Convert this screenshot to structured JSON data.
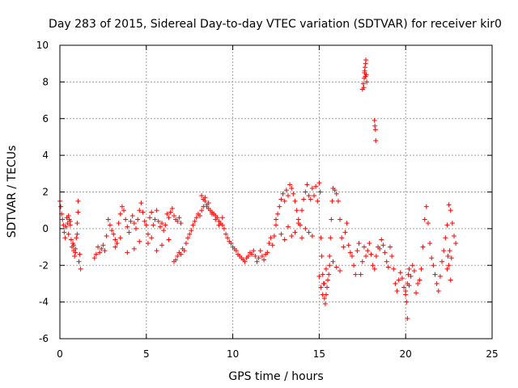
{
  "chart_data": {
    "type": "scatter",
    "title": "Day 283 of 2015, Sidereal Day-to-day VTEC variation (SDTVAR) for receiver kir0",
    "xlabel": "GPS time / hours",
    "ylabel": "SDTVAR / TECUs",
    "xlim": [
      0,
      25
    ],
    "ylim": [
      -6,
      10
    ],
    "xticks": [
      "0",
      "5",
      "10",
      "15",
      "20",
      "25"
    ],
    "yticks": [
      "-6",
      "-4",
      "-2",
      "0",
      "2",
      "4",
      "6",
      "8",
      "10"
    ],
    "grid": true,
    "marker": "+",
    "color": "#ff0000",
    "series": [
      {
        "name": "SDTVAR",
        "x": [
          0.0,
          0.05,
          0.1,
          0.15,
          0.2,
          0.25,
          0.3,
          0.35,
          0.4,
          0.45,
          0.5,
          0.55,
          0.6,
          0.65,
          0.7,
          0.75,
          0.8,
          0.85,
          0.9,
          0.95,
          1.0,
          1.05,
          1.1,
          1.15,
          1.2,
          0.5,
          0.6,
          0.8,
          0.9,
          1.0,
          1.05,
          2.0,
          2.1,
          2.2,
          2.3,
          2.4,
          2.5,
          2.6,
          2.7,
          2.8,
          2.9,
          3.0,
          3.1,
          3.2,
          3.3,
          3.4,
          3.5,
          3.6,
          3.7,
          3.8,
          3.9,
          4.0,
          4.1,
          4.2,
          4.3,
          4.4,
          4.5,
          4.6,
          4.7,
          4.8,
          4.9,
          3.2,
          3.5,
          3.9,
          4.3,
          4.6,
          5.0,
          5.1,
          5.2,
          5.3,
          5.4,
          5.5,
          5.6,
          5.7,
          5.8,
          5.9,
          6.0,
          6.1,
          6.2,
          6.3,
          6.4,
          6.5,
          6.6,
          6.7,
          6.8,
          6.9,
          7.0,
          5.1,
          5.3,
          5.6,
          5.9,
          6.3,
          6.6,
          6.7,
          6.8,
          6.9,
          7.0,
          7.1,
          7.2,
          7.3,
          7.4,
          7.5,
          7.6,
          7.7,
          7.8,
          7.9,
          8.0,
          8.1,
          8.2,
          8.3,
          8.4,
          8.5,
          8.6,
          8.7,
          8.8,
          8.9,
          9.0,
          9.1,
          9.2,
          9.3,
          9.4,
          9.5,
          9.6,
          9.7,
          9.8,
          9.9,
          10.0,
          8.2,
          8.3,
          8.4,
          8.5,
          8.6,
          8.8,
          9.0,
          9.2,
          9.4,
          10.1,
          10.2,
          10.3,
          10.4,
          10.5,
          10.6,
          10.7,
          10.8,
          10.9,
          11.0,
          11.1,
          11.2,
          11.3,
          11.4,
          11.5,
          11.6,
          11.7,
          11.8,
          11.9,
          12.0,
          12.1,
          12.2,
          12.3,
          12.4,
          12.5,
          12.5,
          12.6,
          12.7,
          12.8,
          12.9,
          13.0,
          13.1,
          13.2,
          13.3,
          13.4,
          13.5,
          13.6,
          13.7,
          13.8,
          13.9,
          14.0,
          14.1,
          14.2,
          14.3,
          14.4,
          14.5,
          14.6,
          14.7,
          14.8,
          14.9,
          12.8,
          13.0,
          13.2,
          13.4,
          13.6,
          13.8,
          14.0,
          14.2,
          14.4,
          14.6,
          15.0,
          15.05,
          15.1,
          15.15,
          15.2,
          15.25,
          15.3,
          15.35,
          15.4,
          15.45,
          15.5,
          15.55,
          15.6,
          15.65,
          15.7,
          15.75,
          15.8,
          15.9,
          16.0,
          16.1,
          16.2,
          16.3,
          16.4,
          16.5,
          16.6,
          15.0,
          15.1,
          15.2,
          15.3,
          15.4,
          15.6,
          15.8,
          16.0,
          16.2,
          16.7,
          16.8,
          16.9,
          17.0,
          17.1,
          17.2,
          17.3,
          17.4,
          17.5,
          17.6,
          17.7,
          17.8,
          17.9,
          18.0,
          18.1,
          18.2,
          18.3,
          18.4,
          18.5,
          18.6,
          18.7,
          18.8,
          18.9,
          19.0,
          17.5,
          17.55,
          17.6,
          17.62,
          17.65,
          17.68,
          17.7,
          17.72,
          17.75,
          17.58,
          17.63,
          17.67,
          18.2,
          18.22,
          18.25,
          18.27,
          19.1,
          19.2,
          19.3,
          19.4,
          19.5,
          19.6,
          19.7,
          19.8,
          19.9,
          20.0,
          20.1,
          20.2,
          20.3,
          20.4,
          20.5,
          20.6,
          20.7,
          20.8,
          20.9,
          21.0,
          21.1,
          21.2,
          21.3,
          21.4,
          21.5,
          20.0,
          20.05,
          20.1,
          20.15,
          20.2,
          21.6,
          21.7,
          21.8,
          21.9,
          22.0,
          22.1,
          22.2,
          22.3,
          22.4,
          22.5,
          22.6,
          22.7,
          22.8,
          22.9,
          22.4,
          22.45,
          22.5,
          22.55,
          22.6,
          22.65
        ],
        "y": [
          1.5,
          1.2,
          0.8,
          0.5,
          0.2,
          -0.2,
          -0.5,
          0.1,
          0.6,
          0.3,
          -0.3,
          0.5,
          0.2,
          -0.6,
          -1.0,
          -0.8,
          -1.2,
          -1.5,
          -1.1,
          -0.5,
          0.3,
          1.5,
          -1.8,
          -1.4,
          -2.2,
          0.7,
          0.4,
          -0.9,
          -1.3,
          -0.3,
          0.9,
          -1.6,
          -1.4,
          -1.0,
          -1.3,
          -1.1,
          -0.9,
          -1.2,
          -0.4,
          0.5,
          0.2,
          -0.1,
          -0.3,
          -0.6,
          -0.8,
          0.3,
          0.8,
          1.2,
          1.0,
          0.5,
          0.1,
          -0.2,
          0.4,
          0.7,
          0.3,
          0.0,
          0.5,
          1.0,
          1.4,
          0.9,
          0.4,
          -1.0,
          -0.5,
          -1.3,
          -1.1,
          -0.7,
          0.2,
          -0.3,
          0.6,
          0.9,
          0.2,
          0.5,
          1.0,
          0.4,
          0.1,
          0.3,
          -0.1,
          0.2,
          0.8,
          0.6,
          0.9,
          1.1,
          0.7,
          0.5,
          0.4,
          0.6,
          0.3,
          -0.8,
          -0.5,
          -1.2,
          -0.9,
          -0.6,
          -1.8,
          -1.7,
          -1.5,
          -1.3,
          -1.4,
          -1.1,
          -1.2,
          -0.8,
          -0.5,
          -0.3,
          -0.1,
          0.2,
          0.4,
          0.6,
          0.8,
          0.7,
          1.0,
          1.2,
          1.5,
          1.3,
          1.1,
          1.0,
          0.9,
          0.8,
          0.7,
          0.6,
          0.4,
          0.3,
          0.2,
          0.0,
          -0.3,
          -0.5,
          -0.7,
          -0.8,
          -1.0,
          1.8,
          1.6,
          1.7,
          1.2,
          1.4,
          0.8,
          0.5,
          0.2,
          0.6,
          -1.1,
          -1.2,
          -1.4,
          -1.5,
          -1.6,
          -1.7,
          -1.8,
          -1.6,
          -1.5,
          -1.3,
          -1.4,
          -1.2,
          -1.5,
          -1.8,
          -1.6,
          -1.2,
          -1.5,
          -1.7,
          -1.4,
          -1.3,
          -0.8,
          -0.5,
          -0.9,
          -0.4,
          0.2,
          0.5,
          0.8,
          1.2,
          1.6,
          1.9,
          1.5,
          2.1,
          1.8,
          2.4,
          2.2,
          1.9,
          1.5,
          1.0,
          0.5,
          0.2,
          1.0,
          1.6,
          2.0,
          2.4,
          1.8,
          1.6,
          2.2,
          1.8,
          2.3,
          1.5,
          -0.3,
          -0.6,
          0.1,
          -0.4,
          -0.2,
          0.3,
          -0.5,
          0.0,
          -0.2,
          -0.4,
          2.5,
          2.0,
          -0.5,
          -1.5,
          -2.5,
          -3.0,
          -3.8,
          -4.1,
          -3.6,
          -3.2,
          -2.8,
          -2.5,
          -1.5,
          -0.5,
          0.5,
          1.5,
          2.2,
          2.1,
          1.9,
          1.5,
          0.5,
          -0.5,
          -1.0,
          -0.2,
          0.3,
          -2.6,
          -3.2,
          -3.6,
          -3.0,
          -2.2,
          -2.0,
          -1.8,
          -2.1,
          -2.3,
          -0.9,
          -1.3,
          -1.5,
          -2.0,
          -2.5,
          -1.2,
          -0.8,
          -2.5,
          -1.8,
          -1.0,
          -1.5,
          -1.2,
          -0.8,
          -1.4,
          -2.0,
          -2.2,
          -1.5,
          -1.0,
          -1.1,
          -0.6,
          -0.9,
          -1.3,
          -1.8,
          -2.1,
          7.6,
          7.9,
          8.2,
          8.5,
          8.8,
          9.0,
          9.2,
          8.4,
          8.0,
          7.7,
          8.6,
          8.3,
          5.9,
          5.6,
          5.4,
          4.8,
          -1.0,
          -1.5,
          -2.2,
          -3.0,
          -3.4,
          -2.8,
          -2.4,
          -2.7,
          -3.2,
          -3.6,
          -4.9,
          -3.1,
          -2.6,
          -2.0,
          -2.3,
          -3.5,
          -3.0,
          -2.8,
          -2.2,
          -1.0,
          0.5,
          1.2,
          0.3,
          -0.8,
          -1.6,
          -3.4,
          -4.0,
          -3.0,
          -2.5,
          -2.2,
          -2.0,
          -2.5,
          -3.0,
          -3.4,
          -2.6,
          -1.8,
          -1.2,
          -0.5,
          0.2,
          1.3,
          1.0,
          0.3,
          -0.4,
          -0.8,
          -2.2,
          -1.5,
          -2.0,
          -1.2,
          -2.8,
          -1.6
        ]
      }
    ]
  }
}
